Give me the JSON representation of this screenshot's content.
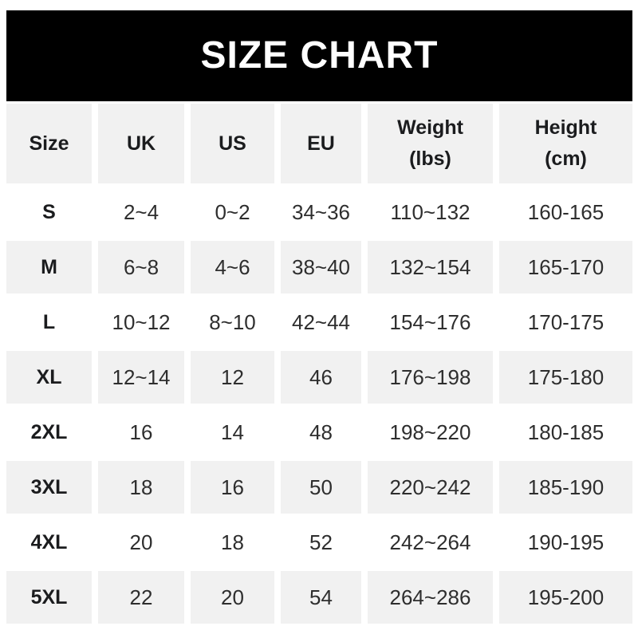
{
  "title": "SIZE CHART",
  "colors": {
    "banner_bg": "#000000",
    "banner_text": "#ffffff",
    "row_alt_bg": "#f1f1f1",
    "row_bg": "#ffffff",
    "header_text": "#1b1c1e",
    "body_text": "#2e2e2e"
  },
  "chart_data": {
    "type": "table",
    "title": "SIZE CHART",
    "columns": [
      {
        "label": "Size",
        "sub": ""
      },
      {
        "label": "UK",
        "sub": ""
      },
      {
        "label": "US",
        "sub": ""
      },
      {
        "label": "EU",
        "sub": ""
      },
      {
        "label": "Weight",
        "sub": "(lbs)"
      },
      {
        "label": "Height",
        "sub": "(cm)"
      }
    ],
    "rows": [
      [
        "S",
        "2~4",
        "0~2",
        "34~36",
        "110~132",
        "160-165"
      ],
      [
        "M",
        "6~8",
        "4~6",
        "38~40",
        "132~154",
        "165-170"
      ],
      [
        "L",
        "10~12",
        "8~10",
        "42~44",
        "154~176",
        "170-175"
      ],
      [
        "XL",
        "12~14",
        "12",
        "46",
        "176~198",
        "175-180"
      ],
      [
        "2XL",
        "16",
        "14",
        "48",
        "198~220",
        "180-185"
      ],
      [
        "3XL",
        "18",
        "16",
        "50",
        "220~242",
        "185-190"
      ],
      [
        "4XL",
        "20",
        "18",
        "52",
        "242~264",
        "190-195"
      ],
      [
        "5XL",
        "22",
        "20",
        "54",
        "264~286",
        "195-200"
      ]
    ],
    "layout": {
      "alternating_row_shading": true,
      "shaded_rows": [
        "header",
        "M",
        "XL",
        "3XL",
        "5XL"
      ]
    }
  }
}
